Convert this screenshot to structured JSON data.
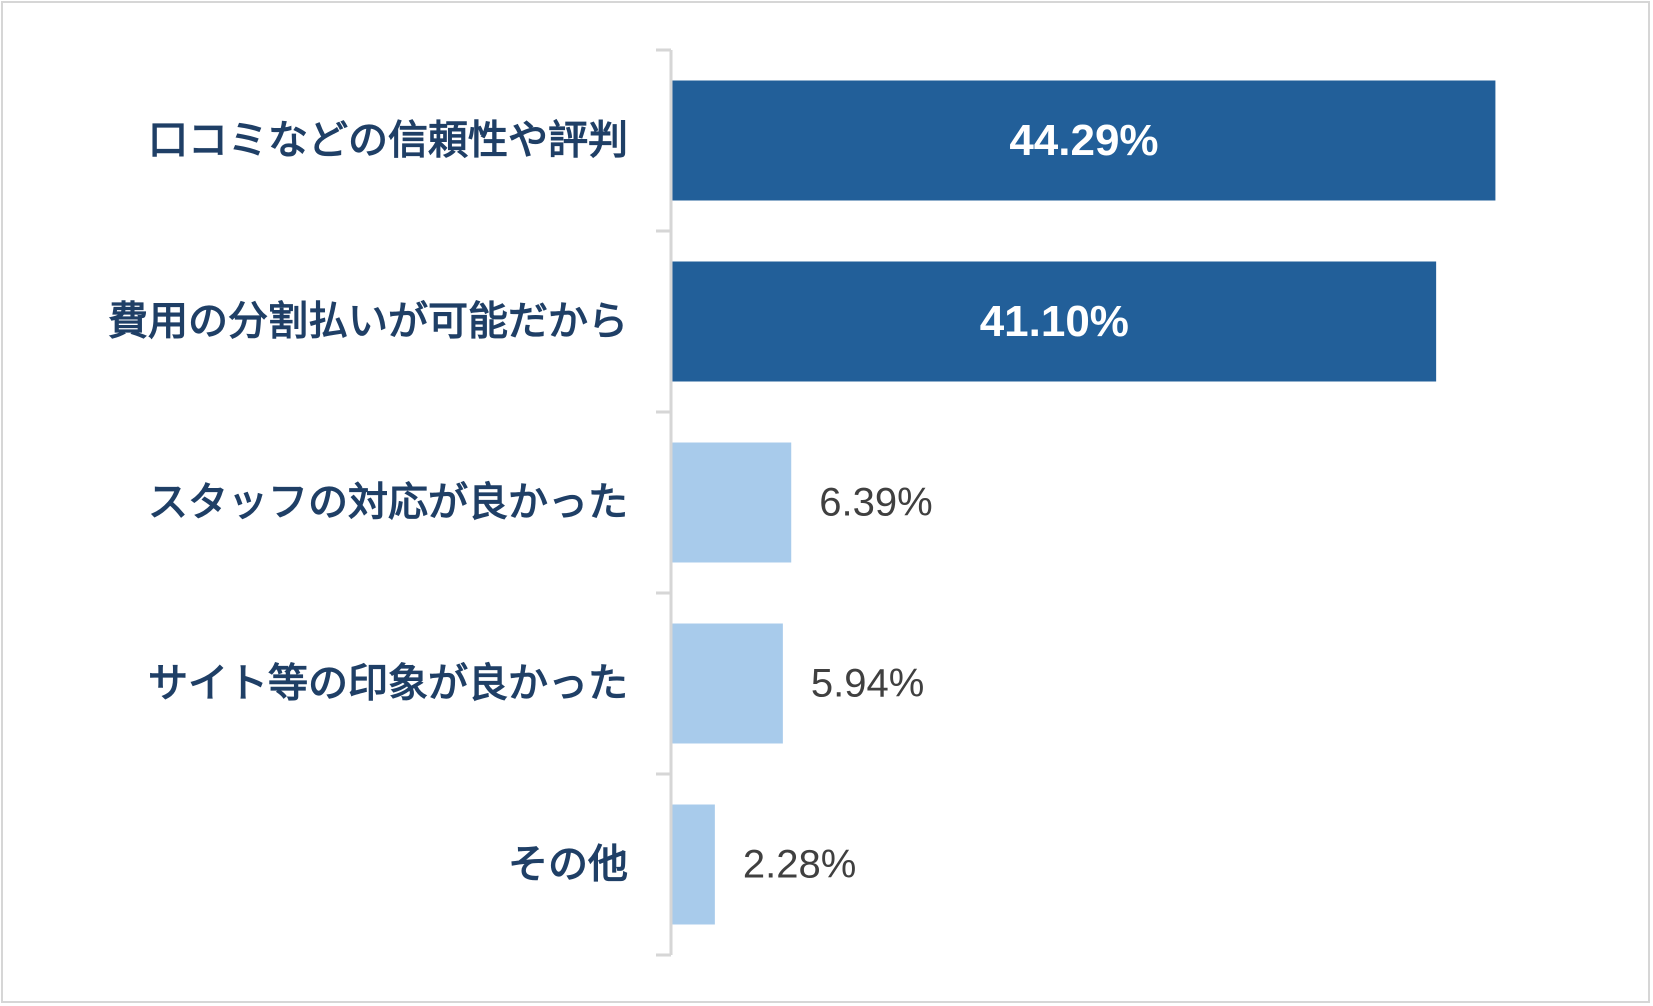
{
  "chart_data": {
    "type": "bar",
    "orientation": "horizontal",
    "categories": [
      "口コミなどの信頼性や評判",
      "費用の分割払いが可能だから",
      "スタッフの対応が良かった",
      "サイト等の印象が良かった",
      "その他"
    ],
    "values": [
      44.29,
      41.1,
      6.39,
      5.94,
      2.28
    ],
    "value_labels": [
      "44.29%",
      "41.10%",
      "6.39%",
      "5.94%",
      "2.28%"
    ],
    "highlighted": [
      true,
      true,
      false,
      false,
      false
    ],
    "xlim": [
      0,
      50
    ],
    "title": "",
    "xlabel": "",
    "ylabel": "",
    "grid": false,
    "legend": "none",
    "colors": {
      "highlight_bar": "#225f99",
      "normal_bar": "#a8cbeb",
      "category_text": "#1f3f66",
      "inside_value_text": "#ffffff",
      "outside_value_text": "#404040",
      "axis": "#d6d6d6",
      "frame": "#d6d6d6"
    }
  }
}
